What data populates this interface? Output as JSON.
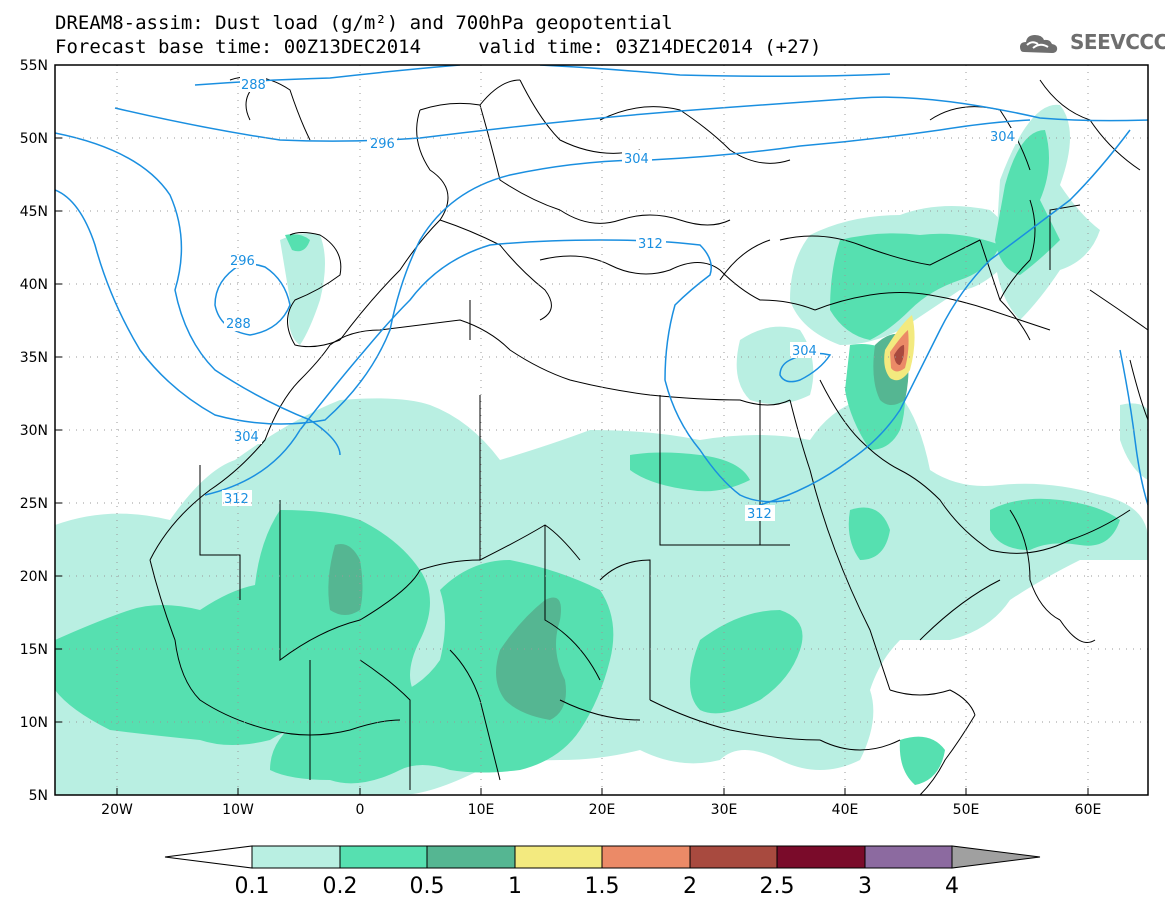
{
  "header": {
    "title_line1": "DREAM8-assim: Dust load (g/m²) and 700hPa geopotential",
    "title_line2": "Forecast base time: 00Z13DEC2014     valid time: 03Z14DEC2014 (+27)"
  },
  "logo": {
    "text": "SEEVCCC",
    "icon": "cloud-icon"
  },
  "axes": {
    "lon_ticks": [
      "20W",
      "10W",
      "0",
      "10E",
      "20E",
      "30E",
      "40E",
      "50E",
      "60E"
    ],
    "lat_ticks": [
      "55N",
      "50N",
      "45N",
      "40N",
      "35N",
      "30N",
      "25N",
      "20N",
      "15N",
      "10N",
      "5N"
    ],
    "lon_range": [
      -25,
      65
    ],
    "lat_range": [
      5,
      55
    ]
  },
  "contours": {
    "color": "#1a8fe0",
    "labels": [
      "288",
      "296",
      "304",
      "312",
      "296",
      "288",
      "304",
      "312",
      "304",
      "312",
      "304"
    ]
  },
  "colorbar": {
    "labels": [
      "0.1",
      "0.2",
      "0.5",
      "1",
      "1.5",
      "2",
      "2.5",
      "3",
      "4"
    ],
    "colors": [
      "#ffffff",
      "#b9efe2",
      "#56e0b0",
      "#55b692",
      "#f3ea7f",
      "#eb8a67",
      "#a84a3f",
      "#7a0b2a",
      "#8c6aa0",
      "#a0a0a0"
    ]
  },
  "dust_colors": {
    "light": "#b9efe2",
    "medium": "#56e0b0",
    "dark": "#55b692",
    "yellow": "#f3ea7f",
    "orange": "#eb8a67",
    "brown": "#a84a3f"
  }
}
